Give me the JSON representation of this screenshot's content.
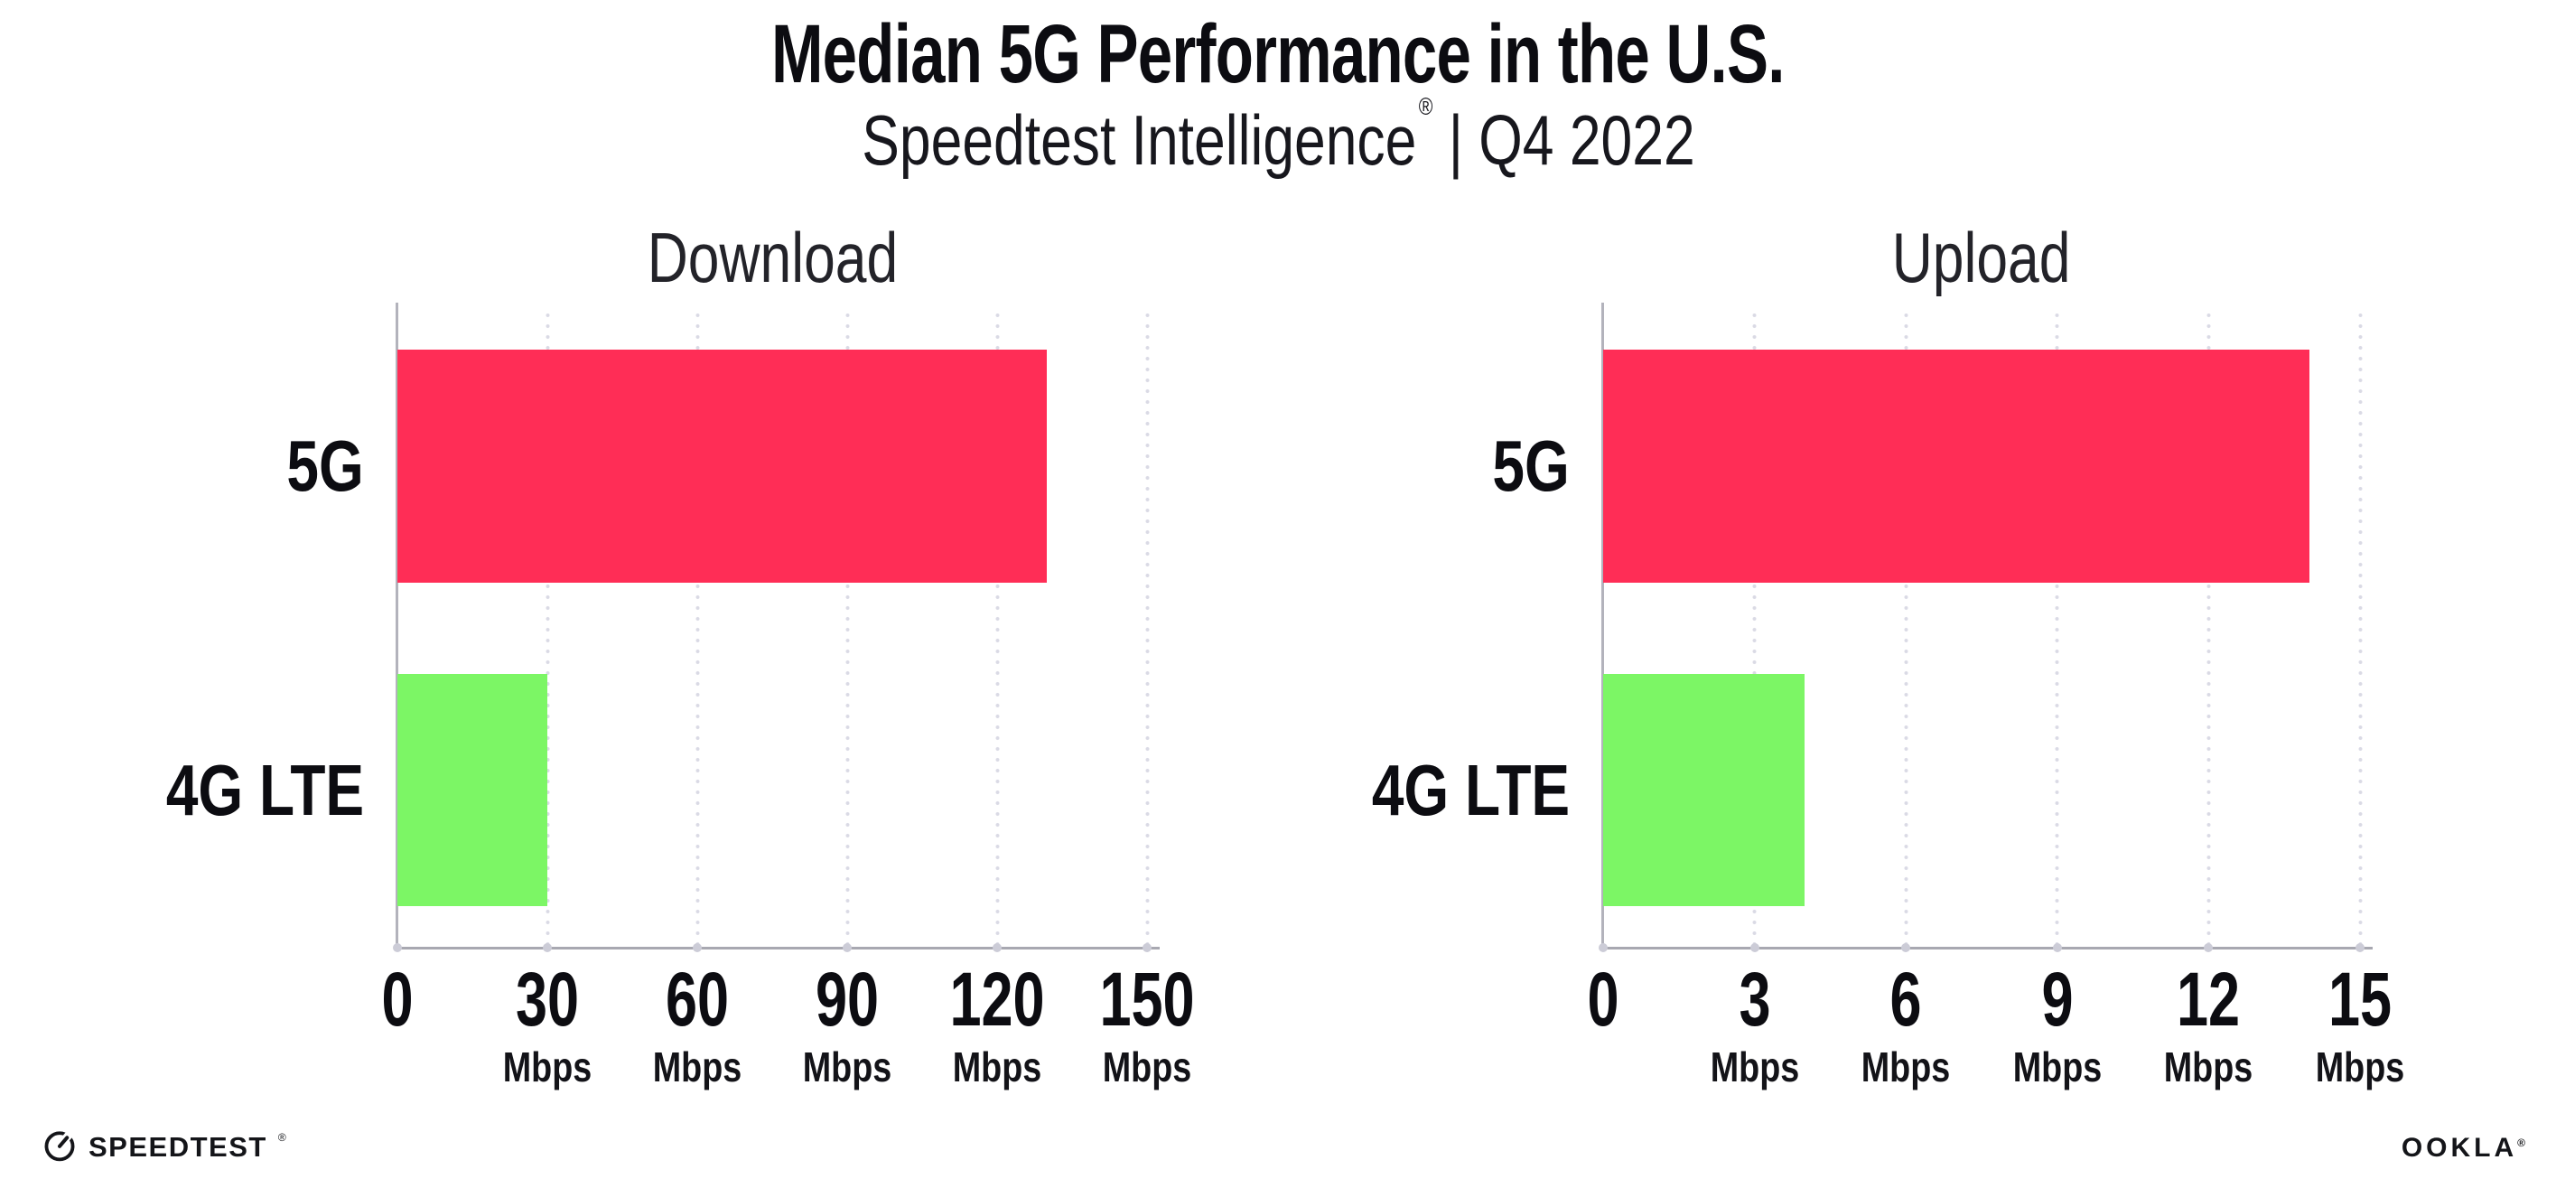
{
  "header": {
    "title": "Median 5G Performance in the U.S.",
    "subtitle_brand": "Speedtest Intelligence",
    "subtitle_mark": "®",
    "subtitle_rest": " | Q4 2022"
  },
  "chart_data": [
    {
      "type": "bar",
      "orientation": "horizontal",
      "title": "Download",
      "categories": [
        "5G",
        "4G LTE"
      ],
      "values": [
        130,
        30
      ],
      "unit": "Mbps",
      "xlim": [
        0,
        150
      ],
      "ticks": [
        0,
        30,
        60,
        90,
        120,
        150
      ],
      "bar_colors": [
        "#FF2D56",
        "#7CF665"
      ],
      "grid": "dotted-vertical",
      "legend": "none"
    },
    {
      "type": "bar",
      "orientation": "horizontal",
      "title": "Upload",
      "categories": [
        "5G",
        "4G LTE"
      ],
      "values": [
        14,
        4
      ],
      "unit": "Mbps",
      "xlim": [
        0,
        15
      ],
      "ticks": [
        0,
        3,
        6,
        9,
        12,
        15
      ],
      "bar_colors": [
        "#FF2D56",
        "#7CF665"
      ],
      "grid": "dotted-vertical",
      "legend": "none"
    }
  ],
  "footer": {
    "speedtest_label": "SPEEDTEST",
    "speedtest_mark": "®",
    "ookla_label": "OOKLA",
    "ookla_mark": "®"
  },
  "colors": {
    "bar_5g": "#FF2D56",
    "bar_4g_lte": "#7CF665",
    "axis_line": "#ACACB5",
    "gridline_dots": "#DADAE5",
    "text": "#0C0C11",
    "background": "#FFFFFF"
  }
}
